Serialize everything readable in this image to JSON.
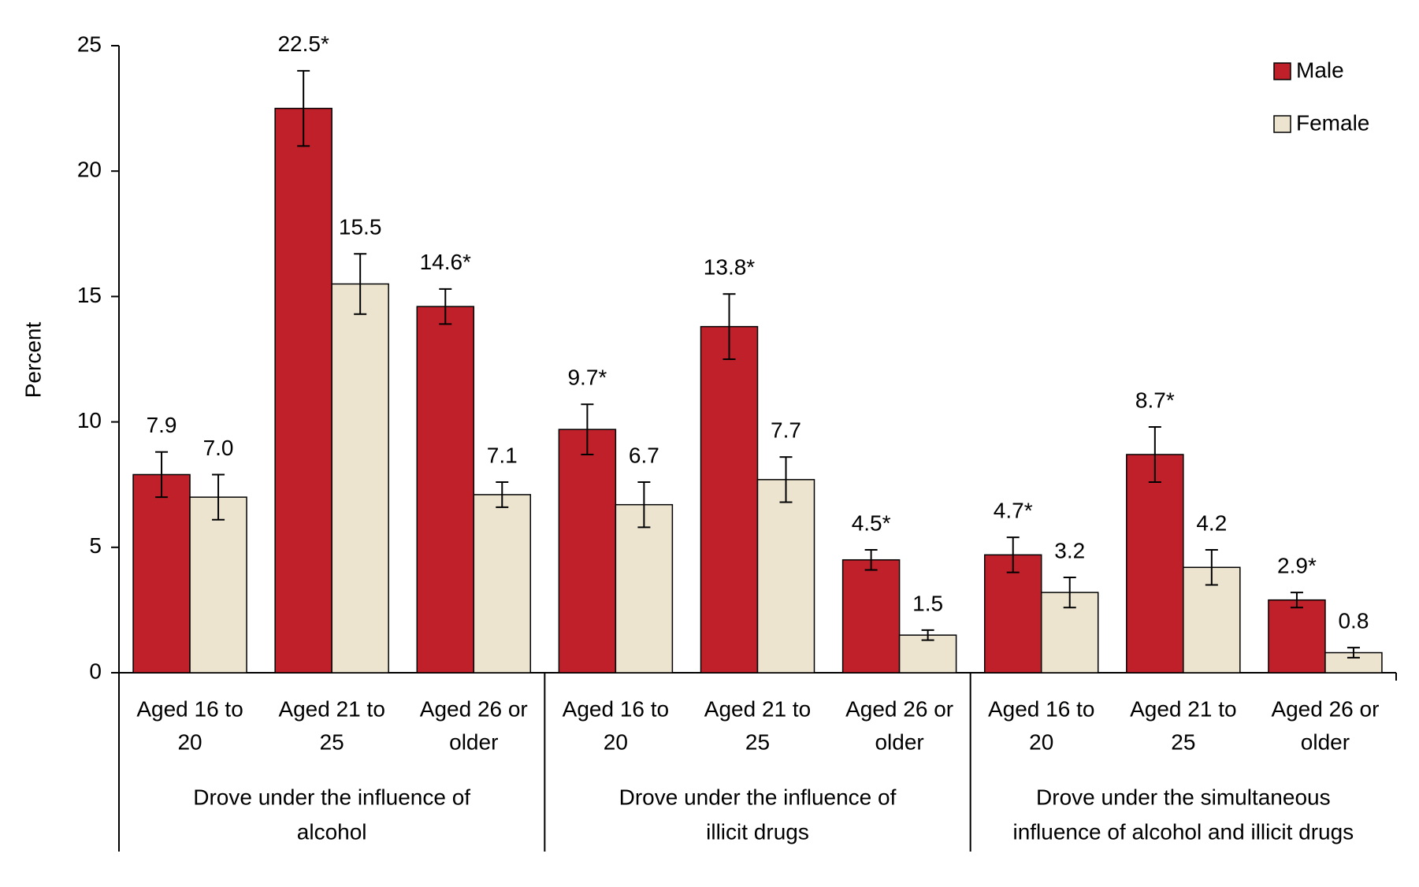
{
  "chart_data": {
    "type": "bar",
    "y_label": "Percent",
    "groups": [
      {
        "label": [
          "Drove under the influence of",
          "alcohol"
        ],
        "categories": [
          [
            "Aged 16 to",
            "20"
          ],
          [
            "Aged 21 to",
            "25"
          ],
          [
            "Aged 26 or",
            "older"
          ]
        ]
      },
      {
        "label": [
          "Drove under the influence of",
          "illicit drugs"
        ],
        "categories": [
          [
            "Aged 16 to",
            "20"
          ],
          [
            "Aged 21 to",
            "25"
          ],
          [
            "Aged 26 or",
            "older"
          ]
        ]
      },
      {
        "label": [
          "Drove under the simultaneous",
          "influence of alcohol and illicit drugs"
        ],
        "categories": [
          [
            "Aged 16 to",
            "20"
          ],
          [
            "Aged 21 to",
            "25"
          ],
          [
            "Aged 26 or",
            "older"
          ]
        ]
      }
    ],
    "series": [
      {
        "name": "Male",
        "color": "#c0202a",
        "values": [
          7.9,
          22.5,
          14.6,
          9.7,
          13.8,
          4.5,
          4.7,
          8.7,
          2.9
        ],
        "value_labels": [
          "7.9",
          "22.5*",
          "14.6*",
          "9.7*",
          "13.8*",
          "4.5*",
          "4.7*",
          "8.7*",
          "2.9*"
        ],
        "errors": [
          0.9,
          1.5,
          0.7,
          1.0,
          1.3,
          0.4,
          0.7,
          1.1,
          0.3
        ]
      },
      {
        "name": "Female",
        "color": "#ede4cf",
        "values": [
          7.0,
          15.5,
          7.1,
          6.7,
          7.7,
          1.5,
          3.2,
          4.2,
          0.8
        ],
        "value_labels": [
          "7.0",
          "15.5",
          "7.1",
          "6.7",
          "7.7",
          "1.5",
          "3.2",
          "4.2",
          "0.8"
        ],
        "errors": [
          0.9,
          1.2,
          0.5,
          0.9,
          0.9,
          0.2,
          0.6,
          0.7,
          0.2
        ]
      }
    ],
    "ylim": [
      0,
      25
    ],
    "yticks": [
      0,
      5,
      10,
      15,
      20,
      25
    ],
    "legend": "top-right"
  }
}
